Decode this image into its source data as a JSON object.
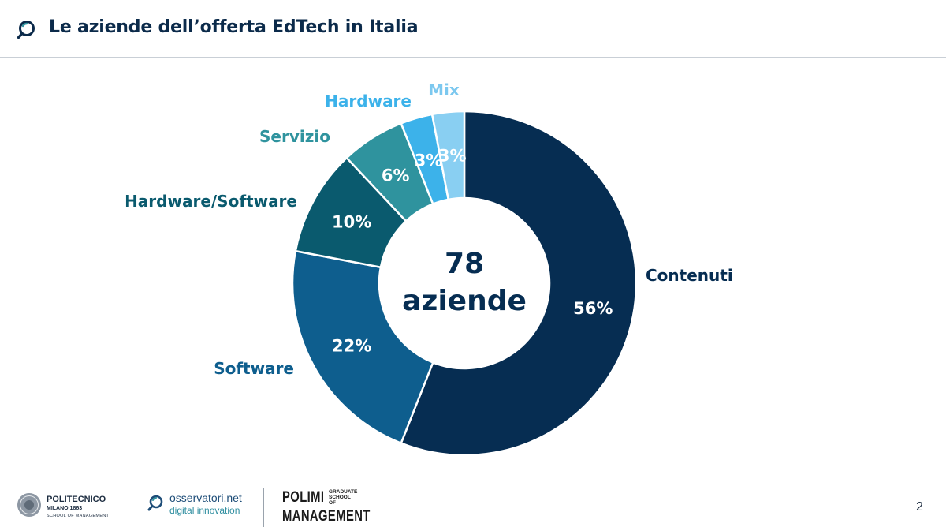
{
  "header": {
    "title": "Le aziende dell’offerta EdTech in Italia"
  },
  "chart_data": {
    "type": "pie",
    "subtype": "donut",
    "center_label": [
      "78",
      "aziende"
    ],
    "total": 78,
    "categories": [
      "Contenuti",
      "Software",
      "Hardware/Software",
      "Servizio",
      "Hardware",
      "Mix"
    ],
    "values": [
      56,
      22,
      10,
      6,
      3,
      3
    ],
    "value_labels": [
      "56%",
      "22%",
      "10%",
      "6%",
      "3%",
      "3%"
    ],
    "colors": [
      "#062d52",
      "#0e5e8e",
      "#0a5a6e",
      "#2f939e",
      "#3cb2ea",
      "#89cff2"
    ],
    "label_colors": [
      "#062d52",
      "#0e5e8e",
      "#0a5a6e",
      "#2f939e",
      "#3cb2ea",
      "#7cc8ef"
    ],
    "start_angle": 0,
    "direction": "clockwise"
  },
  "footer": {
    "politecnico": {
      "name": "POLITECNICO",
      "city": "MILANO 1863",
      "school": "SCHOOL OF MANAGEMENT"
    },
    "osservatori": {
      "name": "osservatori.net",
      "sub": "digital innovation"
    },
    "polimi": {
      "line1": "POLIMI",
      "line2": "MANAGEMENT",
      "graduate": "GRADUATE SCHOOL OF"
    },
    "page_number": "2"
  }
}
